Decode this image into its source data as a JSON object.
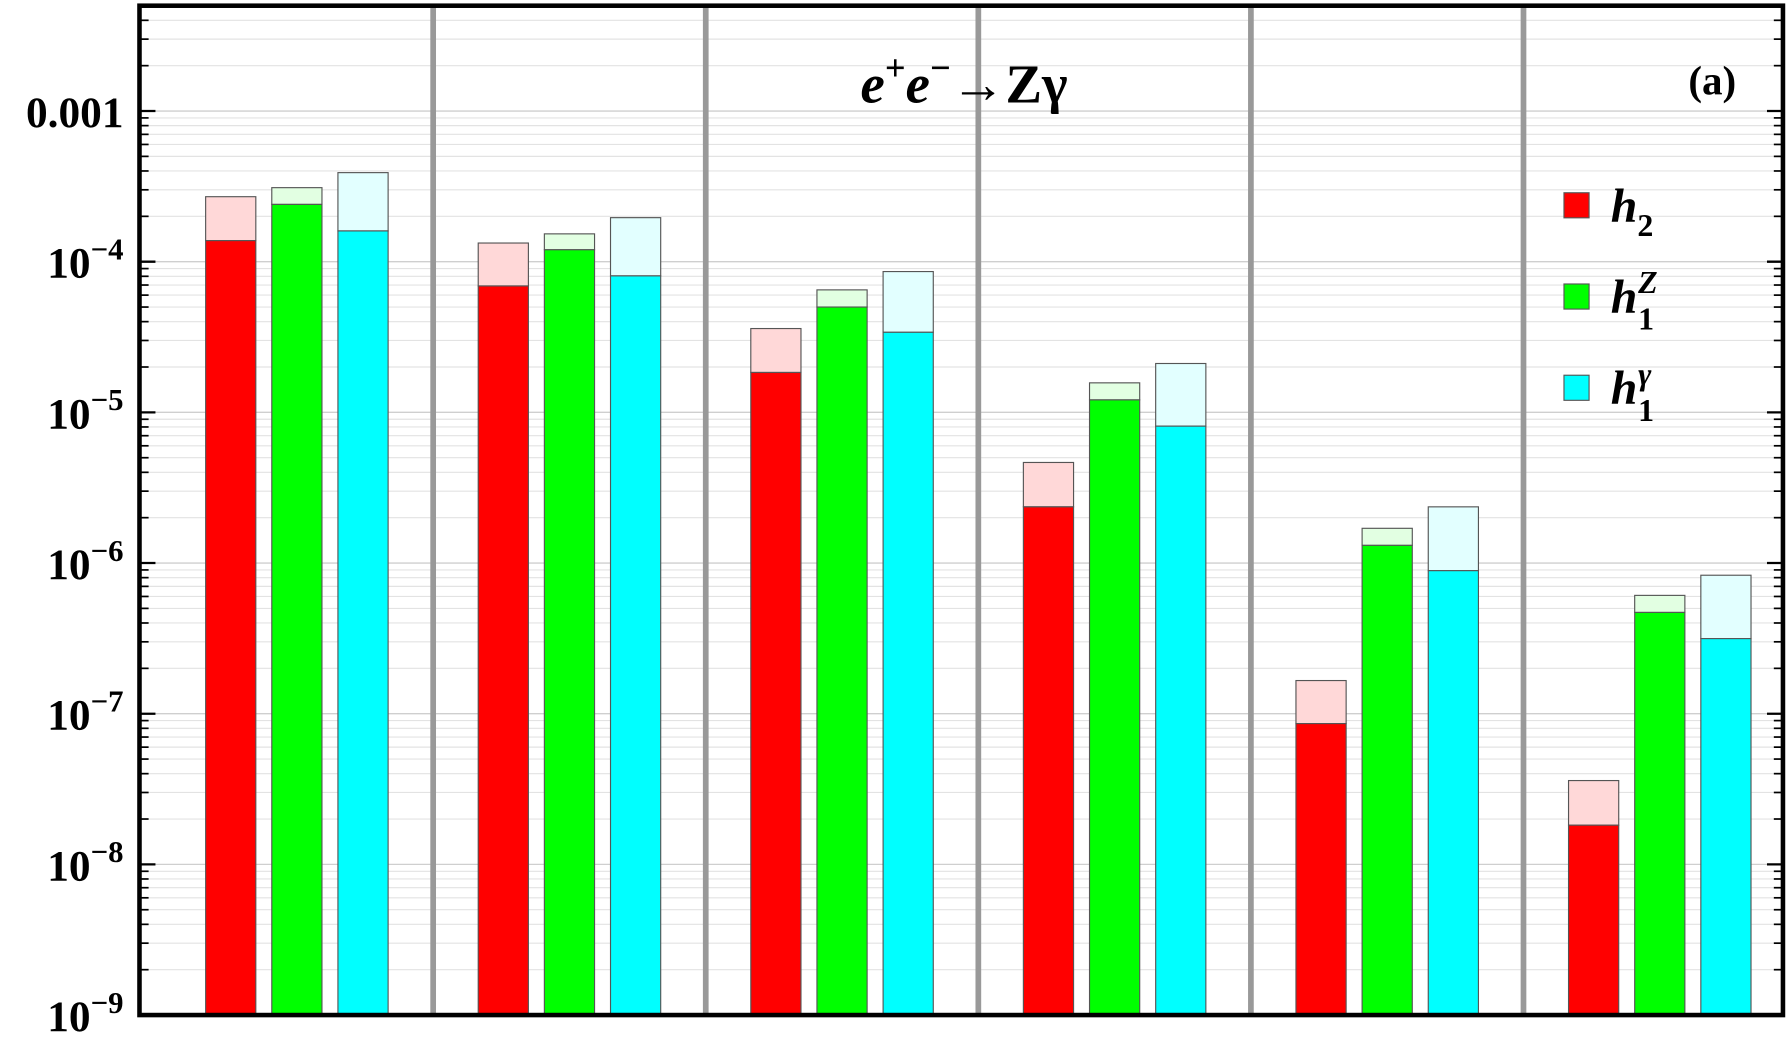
{
  "chart_data": {
    "type": "bar",
    "title_parts": [
      {
        "text": "e"
      },
      {
        "text": "+",
        "sup": true
      },
      {
        "text": "e"
      },
      {
        "text": "−",
        "sup": true
      },
      {
        "text": "→Zγ"
      }
    ],
    "annotation": "(a)",
    "categories": [
      null,
      null,
      null,
      null,
      null,
      null
    ],
    "log_scale": true,
    "grid": true,
    "legend": "upper right",
    "ylim": [
      1e-09,
      0.005
    ],
    "yticks": [
      {
        "value": 1e-09,
        "label": "10",
        "exponent": "−9"
      },
      {
        "value": 1e-08,
        "label": "10",
        "exponent": "−8"
      },
      {
        "value": 1e-07,
        "label": "10",
        "exponent": "−7"
      },
      {
        "value": 1e-06,
        "label": "10",
        "exponent": "−6"
      },
      {
        "value": 1e-05,
        "label": "10",
        "exponent": "−5"
      },
      {
        "value": 0.0001,
        "label": "10",
        "exponent": "−4"
      },
      0.001
    ],
    "series": [
      {
        "name": "h",
        "subscript": "2",
        "color": "#ff0000",
        "upper_color": "#ffd8d8",
        "values": [
          0.000138,
          6.9e-05,
          1.84e-05,
          2.36e-06,
          8.6e-08,
          1.82e-08
        ],
        "upper_values": [
          0.00027,
          0.000133,
          3.6e-05,
          4.65e-06,
          1.66e-07,
          3.6e-08
        ]
      },
      {
        "name": "h",
        "subscript": "1",
        "superscript": "Z",
        "color": "#00ff00",
        "upper_color": "#e2ffe2",
        "values": [
          0.00024,
          0.00012,
          5e-05,
          1.21e-05,
          1.31e-06,
          4.7e-07
        ],
        "upper_values": [
          0.00031,
          0.000153,
          6.5e-05,
          1.57e-05,
          1.7e-06,
          6.1e-07
        ]
      },
      {
        "name": "h",
        "subscript": "1",
        "superscript": "γ",
        "color": "#00ffff",
        "upper_color": "#e2ffff",
        "values": [
          0.00016,
          8.05e-05,
          3.4e-05,
          8.1e-06,
          8.9e-07,
          3.15e-07
        ],
        "upper_values": [
          0.00039,
          0.000196,
          8.6e-05,
          2.11e-05,
          2.36e-06,
          8.3e-07
        ]
      }
    ]
  }
}
